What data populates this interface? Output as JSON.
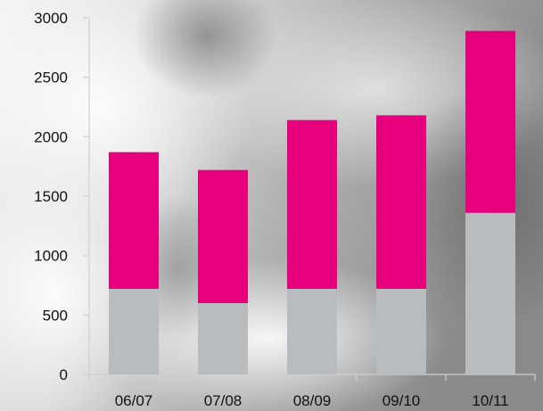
{
  "chart_data": {
    "type": "bar",
    "stacked": true,
    "categories": [
      "06/07",
      "07/08",
      "08/09",
      "09/10",
      "10/11"
    ],
    "series": [
      {
        "values": [
          720,
          600,
          720,
          720,
          1360
        ],
        "color": "#b8bcbf"
      },
      {
        "values": [
          1150,
          1120,
          1420,
          1460,
          1530
        ],
        "color": "#e6007e"
      }
    ],
    "ylim": [
      0,
      3000
    ],
    "yticks": [
      0,
      500,
      1000,
      1500,
      2000,
      2500,
      3000
    ],
    "grid": false,
    "legend": "none",
    "background": "grayscale photo"
  }
}
